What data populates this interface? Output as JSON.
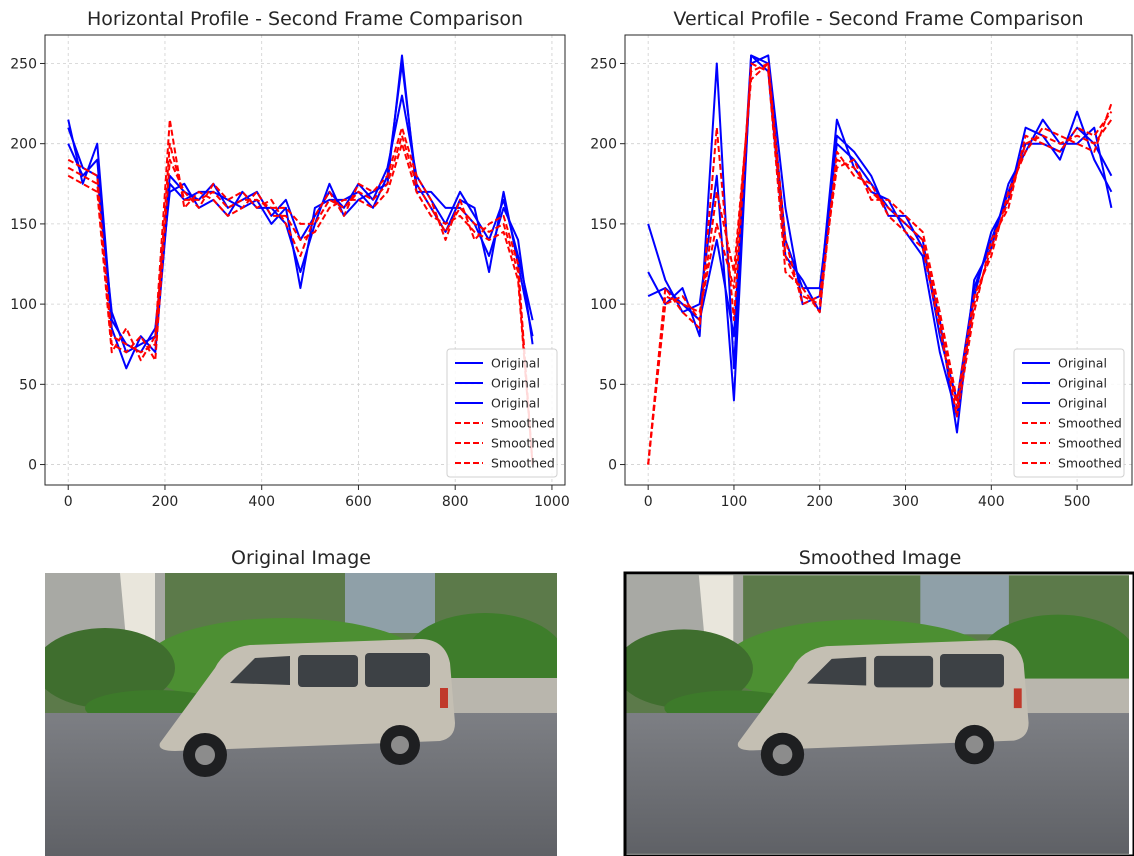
{
  "chart_data": [
    {
      "type": "line",
      "title": "Horizontal Profile - Second Frame Comparison",
      "x": [
        0,
        30,
        60,
        90,
        120,
        150,
        180,
        210,
        240,
        270,
        300,
        330,
        360,
        390,
        420,
        450,
        480,
        510,
        540,
        570,
        600,
        630,
        660,
        690,
        720,
        750,
        780,
        810,
        840,
        870,
        900,
        930,
        960
      ],
      "series": [
        {
          "name": "Original",
          "color": "#0000ff",
          "linestyle": "solid",
          "values": [
            210,
            185,
            180,
            95,
            70,
            75,
            80,
            180,
            170,
            165,
            175,
            160,
            165,
            170,
            155,
            165,
            140,
            155,
            170,
            160,
            175,
            165,
            185,
            230,
            180,
            165,
            150,
            170,
            155,
            140,
            165,
            130,
            90
          ]
        },
        {
          "name": "Original",
          "color": "#0000ff",
          "linestyle": "solid",
          "values": [
            200,
            180,
            190,
            85,
            60,
            80,
            70,
            175,
            165,
            170,
            170,
            165,
            160,
            165,
            150,
            160,
            110,
            160,
            165,
            165,
            170,
            160,
            180,
            250,
            175,
            160,
            145,
            165,
            160,
            120,
            170,
            125,
            80
          ]
        },
        {
          "name": "Original",
          "color": "#0000ff",
          "linestyle": "solid",
          "values": [
            215,
            175,
            200,
            90,
            75,
            70,
            85,
            170,
            175,
            160,
            165,
            155,
            170,
            160,
            160,
            150,
            120,
            150,
            175,
            155,
            165,
            170,
            175,
            255,
            170,
            170,
            160,
            160,
            150,
            130,
            160,
            140,
            75
          ]
        },
        {
          "name": "Smoothed",
          "color": "#ff0000",
          "linestyle": "dashed",
          "values": [
            185,
            180,
            175,
            80,
            75,
            70,
            75,
            200,
            165,
            165,
            170,
            160,
            165,
            165,
            160,
            160,
            150,
            150,
            165,
            160,
            170,
            165,
            175,
            205,
            175,
            160,
            145,
            160,
            150,
            145,
            150,
            120,
            0
          ]
        },
        {
          "name": "Smoothed",
          "color": "#ff0000",
          "linestyle": "dashed",
          "values": [
            180,
            175,
            170,
            70,
            85,
            65,
            80,
            215,
            160,
            170,
            165,
            155,
            160,
            170,
            155,
            155,
            140,
            145,
            160,
            165,
            165,
            160,
            170,
            200,
            170,
            155,
            150,
            155,
            145,
            140,
            145,
            115,
            0
          ]
        },
        {
          "name": "Smoothed",
          "color": "#ff0000",
          "linestyle": "dashed",
          "values": [
            190,
            185,
            180,
            75,
            70,
            80,
            65,
            190,
            170,
            160,
            175,
            165,
            170,
            160,
            165,
            150,
            130,
            155,
            170,
            155,
            175,
            170,
            180,
            210,
            180,
            165,
            140,
            165,
            140,
            150,
            155,
            125,
            0
          ]
        }
      ],
      "xlim": [
        -48,
        1027
      ],
      "ylim": [
        -12.75,
        267.75
      ],
      "xticks": [
        0,
        200,
        400,
        600,
        800,
        1000
      ],
      "yticks": [
        0,
        50,
        100,
        150,
        200,
        250
      ],
      "grid": true,
      "legend": "lower right"
    },
    {
      "type": "line",
      "title": "Vertical Profile - Second Frame Comparison",
      "x": [
        0,
        20,
        40,
        60,
        80,
        100,
        120,
        140,
        160,
        180,
        200,
        220,
        240,
        260,
        280,
        300,
        320,
        340,
        360,
        380,
        400,
        420,
        440,
        460,
        480,
        500,
        520,
        540
      ],
      "series": [
        {
          "name": "Original",
          "color": "#0000ff",
          "linestyle": "solid",
          "values": [
            105,
            110,
            100,
            90,
            140,
            80,
            255,
            250,
            140,
            110,
            110,
            200,
            190,
            175,
            160,
            150,
            140,
            80,
            40,
            110,
            140,
            170,
            200,
            200,
            195,
            210,
            200,
            180
          ]
        },
        {
          "name": "Original",
          "color": "#0000ff",
          "linestyle": "solid",
          "values": [
            120,
            100,
            110,
            80,
            250,
            60,
            250,
            255,
            160,
            100,
            105,
            215,
            185,
            170,
            165,
            145,
            130,
            70,
            30,
            105,
            145,
            165,
            210,
            205,
            190,
            220,
            190,
            170
          ]
        },
        {
          "name": "Original",
          "color": "#0000ff",
          "linestyle": "solid",
          "values": [
            150,
            115,
            95,
            100,
            180,
            40,
            255,
            245,
            130,
            115,
            95,
            205,
            195,
            180,
            155,
            155,
            135,
            90,
            20,
            115,
            135,
            175,
            195,
            215,
            200,
            200,
            210,
            160
          ]
        },
        {
          "name": "Smoothed",
          "color": "#ff0000",
          "linestyle": "dashed",
          "values": [
            0,
            105,
            100,
            95,
            150,
            110,
            245,
            250,
            130,
            105,
            100,
            190,
            185,
            170,
            160,
            150,
            140,
            90,
            35,
            100,
            135,
            165,
            200,
            205,
            200,
            205,
            200,
            215
          ]
        },
        {
          "name": "Smoothed",
          "color": "#ff0000",
          "linestyle": "dashed",
          "values": [
            0,
            110,
            95,
            85,
            210,
            90,
            250,
            245,
            120,
            110,
            95,
            195,
            180,
            175,
            155,
            145,
            135,
            85,
            30,
            95,
            140,
            160,
            205,
            200,
            195,
            210,
            205,
            220
          ]
        },
        {
          "name": "Smoothed",
          "color": "#ff0000",
          "linestyle": "dashed",
          "values": [
            0,
            100,
            105,
            90,
            170,
            120,
            240,
            250,
            140,
            100,
            105,
            185,
            190,
            165,
            165,
            155,
            145,
            95,
            40,
            105,
            130,
            170,
            195,
            210,
            205,
            200,
            195,
            225
          ]
        }
      ],
      "xlim": [
        -27,
        564
      ],
      "ylim": [
        -12.75,
        267.75
      ],
      "xticks": [
        0,
        100,
        200,
        300,
        400,
        500
      ],
      "yticks": [
        0,
        50,
        100,
        150,
        200,
        250
      ],
      "grid": true,
      "legend": "lower right"
    }
  ],
  "images": [
    {
      "title": "Original Image"
    },
    {
      "title": "Smoothed Image"
    }
  ]
}
